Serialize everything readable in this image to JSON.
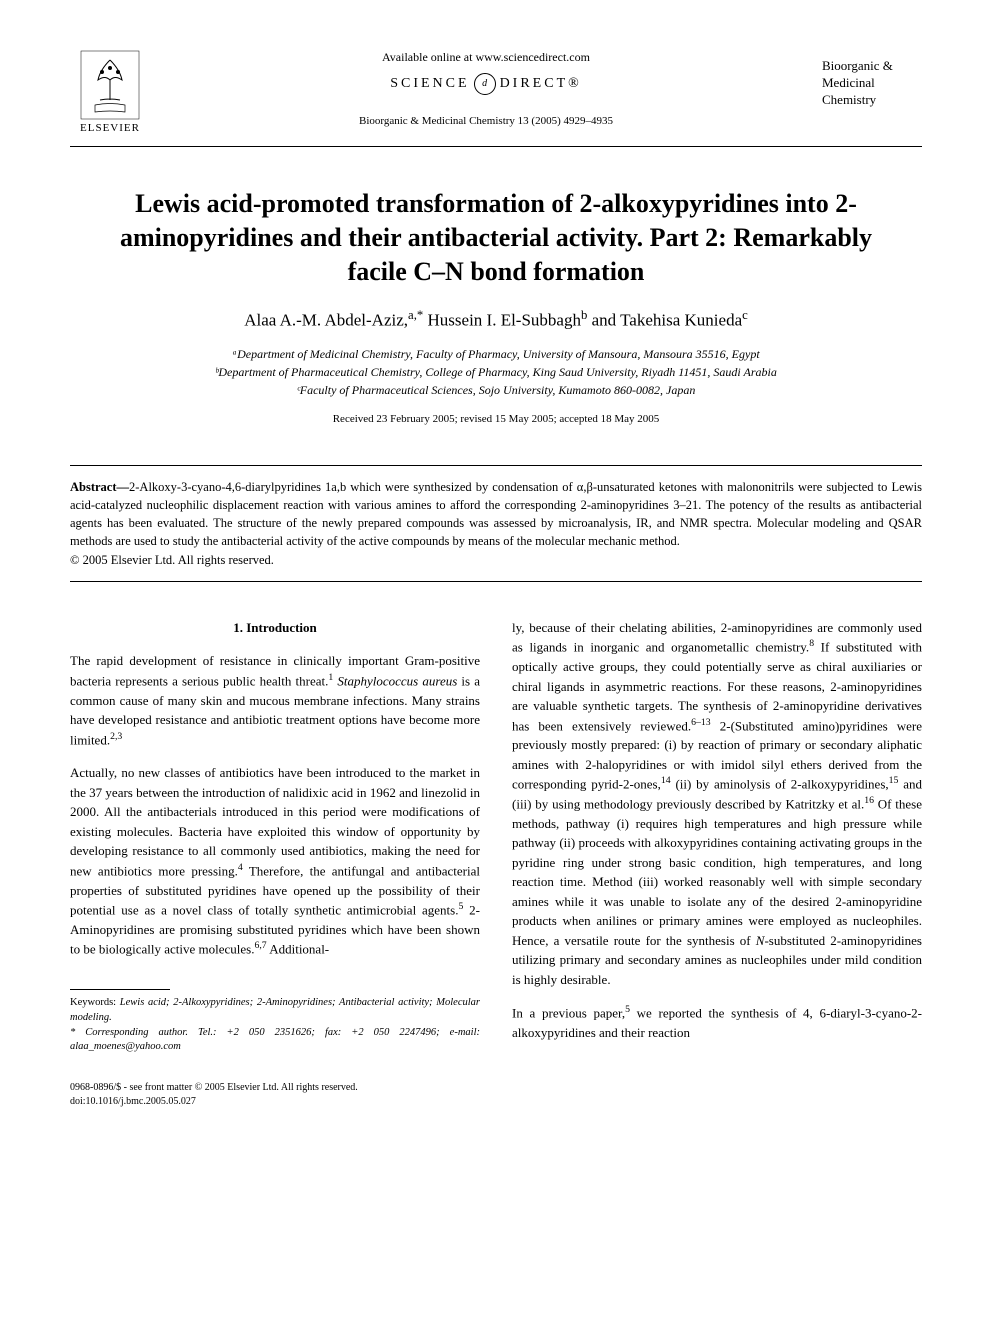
{
  "header": {
    "publisher": "ELSEVIER",
    "available_text": "Available online at www.sciencedirect.com",
    "sciencedirect_left": "SCIENCE",
    "sciencedirect_circle": "d",
    "sciencedirect_right": "DIRECT®",
    "journal_ref": "Bioorganic & Medicinal Chemistry 13 (2005) 4929–4935",
    "journal_name_line1": "Bioorganic &",
    "journal_name_line2": "Medicinal",
    "journal_name_line3": "Chemistry"
  },
  "title": "Lewis acid-promoted transformation of 2-alkoxypyridines into 2-aminopyridines and their antibacterial activity. Part 2: Remarkably facile C–N bond formation",
  "authors_html": "Alaa A.-M. Abdel-Aziz,<sup>a,*</sup> Hussein I. El-Subbagh<sup>b</sup> and Takehisa Kunieda<sup>c</sup>",
  "affiliations": [
    "ᵃDepartment of Medicinal Chemistry, Faculty of Pharmacy, University of Mansoura, Mansoura 35516, Egypt",
    "ᵇDepartment of Pharmaceutical Chemistry, College of Pharmacy, King Saud University, Riyadh 11451, Saudi Arabia",
    "ᶜFaculty of Pharmaceutical Sciences, Sojo University, Kumamoto 860-0082, Japan"
  ],
  "dates": "Received 23 February 2005; revised 15 May 2005; accepted 18 May 2005",
  "abstract": {
    "label": "Abstract—",
    "text": "2-Alkoxy-3-cyano-4,6-diarylpyridines 1a,b which were synthesized by condensation of α,β-unsaturated ketones with malononitrils were subjected to Lewis acid-catalyzed nucleophilic displacement reaction with various amines to afford the corresponding 2-aminopyridines 3–21. The potency of the results as antibacterial agents has been evaluated. The structure of the newly prepared compounds was assessed by microanalysis, IR, and NMR spectra. Molecular modeling and QSAR methods are used to study the antibacterial activity of the active compounds by means of the molecular mechanic method.",
    "copyright": "© 2005 Elsevier Ltd. All rights reserved."
  },
  "section1": {
    "heading": "1. Introduction",
    "para1_html": "The rapid development of resistance in clinically important Gram-positive bacteria represents a serious public health threat.<sup>1</sup> <i>Staphylococcus aureus</i> is a common cause of many skin and mucous membrane infections. Many strains have developed resistance and antibiotic treatment options have become more limited.<sup>2,3</sup>",
    "para2_html": "Actually, no new classes of antibiotics have been introduced to the market in the 37 years between the introduction of nalidixic acid in 1962 and linezolid in 2000. All the antibacterials introduced in this period were modifications of existing molecules. Bacteria have exploited this window of opportunity by developing resistance to all commonly used antibiotics, making the need for new antibiotics more pressing.<sup>4</sup> Therefore, the antifungal and antibacterial properties of substituted pyridines have opened up the possibility of their potential use as a novel class of totally synthetic antimicrobial agents.<sup>5</sup> 2-Aminopyridines are promising substituted pyridines which have been shown to be biologically active molecules.<sup>6,7</sup> Additional-",
    "para2_cont_html": "ly, because of their chelating abilities, 2-aminopyridines are commonly used as ligands in inorganic and organometallic chemistry.<sup>8</sup> If substituted with optically active groups, they could potentially serve as chiral auxiliaries or chiral ligands in asymmetric reactions. For these reasons, 2-aminopyridines are valuable synthetic targets. The synthesis of 2-aminopyridine derivatives has been extensively reviewed.<sup>6–13</sup> 2-(Substituted amino)pyridines were previously mostly prepared: (i) by reaction of primary or secondary aliphatic amines with 2-halopyridines or with imidol silyl ethers derived from the corresponding pyrid-2-ones,<sup>14</sup> (ii) by aminolysis of 2-alkoxypyridines,<sup>15</sup> and (iii) by using methodology previously described by Katritzky et al.<sup>16</sup> Of these methods, pathway (i) requires high temperatures and high pressure while pathway (ii) proceeds with alkoxypyridines containing activating groups in the pyridine ring under strong basic condition, high temperatures, and long reaction time. Method (iii) worked reasonably well with simple secondary amines while it was unable to isolate any of the desired 2-aminopyridine products when anilines or primary amines were employed as nucleophiles. Hence, a versatile route for the synthesis of <i>N</i>-substituted 2-aminopyridines utilizing primary and secondary amines as nucleophiles under mild condition is highly desirable.",
    "para3_html": "In a previous paper,<sup>5</sup> we reported the synthesis of 4, 6-diaryl-3-cyano-2-alkoxypyridines and their reaction"
  },
  "footnotes": {
    "keywords_label": "Keywords:",
    "keywords": " Lewis acid; 2-Alkoxypyridines; 2-Aminopyridines; Antibacterial activity; Molecular modeling.",
    "corresponding_html": "* Corresponding author. Tel.: +2 050 2351626; fax: +2 050 2247496; e-mail: alaa_moenes@yahoo.com"
  },
  "footer": {
    "line1": "0968-0896/$ - see front matter © 2005 Elsevier Ltd. All rights reserved.",
    "line2": "doi:10.1016/j.bmc.2005.05.027"
  },
  "colors": {
    "text": "#000000",
    "background": "#ffffff",
    "rule": "#000000"
  },
  "typography": {
    "title_fontsize": 26,
    "body_fontsize": 13,
    "abstract_fontsize": 12.5,
    "footnote_fontsize": 10.5,
    "footer_fontsize": 10
  }
}
